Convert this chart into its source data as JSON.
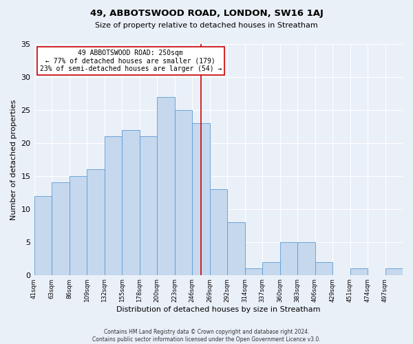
{
  "title": "49, ABBOTSWOOD ROAD, LONDON, SW16 1AJ",
  "subtitle": "Size of property relative to detached houses in Streatham",
  "xlabel": "Distribution of detached houses by size in Streatham",
  "ylabel": "Number of detached properties",
  "bar_values": [
    12,
    14,
    15,
    16,
    21,
    22,
    21,
    27,
    25,
    23,
    13,
    8,
    1,
    2,
    5,
    5,
    2,
    0,
    1,
    0,
    1
  ],
  "bar_labels": [
    "41sqm",
    "63sqm",
    "86sqm",
    "109sqm",
    "132sqm",
    "155sqm",
    "178sqm",
    "200sqm",
    "223sqm",
    "246sqm",
    "269sqm",
    "292sqm",
    "314sqm",
    "337sqm",
    "360sqm",
    "383sqm",
    "406sqm",
    "429sqm",
    "451sqm",
    "474sqm",
    "497sqm"
  ],
  "bin_width": 23,
  "bar_color": "#c5d8ed",
  "bar_edge_color": "#5b9bd5",
  "vline_x": 9.5,
  "vline_color": "#cc0000",
  "annotation_text": "49 ABBOTSWOOD ROAD: 250sqm\n← 77% of detached houses are smaller (179)\n23% of semi-detached houses are larger (54) →",
  "annotation_box_color": "#ffffff",
  "annotation_box_edge": "#cc0000",
  "ylim": [
    0,
    35
  ],
  "background_color": "#eaf0f8",
  "grid_color": "#ffffff",
  "footnote": "Contains HM Land Registry data © Crown copyright and database right 2024.\nContains public sector information licensed under the Open Government Licence v3.0."
}
